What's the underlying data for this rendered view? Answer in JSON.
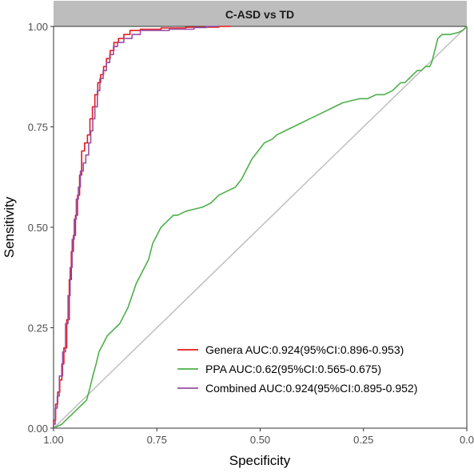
{
  "chart_data": {
    "type": "line",
    "title": "C-ASD vs TD",
    "xlabel": "Specificity",
    "ylabel": "Sensitivity",
    "x_reversed": true,
    "xlim": [
      1.0,
      0.0
    ],
    "ylim": [
      0.0,
      1.0
    ],
    "xticks": [
      1.0,
      0.75,
      0.5,
      0.25,
      0.0
    ],
    "xtick_labels": [
      "1.00",
      "0.75",
      "0.50",
      "0.25",
      "0.0"
    ],
    "yticks": [
      0.0,
      0.25,
      0.5,
      0.75,
      1.0
    ],
    "ytick_labels": [
      "0.00",
      "0.25",
      "0.50",
      "0.75",
      "1.00"
    ],
    "grid": false,
    "legend_position": "bottom-right",
    "reference_line": {
      "x": [
        1.0,
        0.0
      ],
      "y": [
        0.0,
        1.0
      ],
      "color": "#bfbfbf"
    },
    "series": [
      {
        "name": "Genera AUC:0.924(95%CI:0.896-0.953)",
        "color": "#e41a1c",
        "points": [
          [
            1.0,
            0.0
          ],
          [
            1.0,
            0.02
          ],
          [
            0.995,
            0.02
          ],
          [
            0.995,
            0.06
          ],
          [
            0.99,
            0.06
          ],
          [
            0.99,
            0.09
          ],
          [
            0.985,
            0.09
          ],
          [
            0.985,
            0.12
          ],
          [
            0.98,
            0.12
          ],
          [
            0.98,
            0.16
          ],
          [
            0.975,
            0.16
          ],
          [
            0.975,
            0.2
          ],
          [
            0.968,
            0.2
          ],
          [
            0.968,
            0.27
          ],
          [
            0.962,
            0.27
          ],
          [
            0.962,
            0.37
          ],
          [
            0.957,
            0.37
          ],
          [
            0.957,
            0.44
          ],
          [
            0.952,
            0.44
          ],
          [
            0.952,
            0.48
          ],
          [
            0.947,
            0.48
          ],
          [
            0.947,
            0.53
          ],
          [
            0.942,
            0.53
          ],
          [
            0.942,
            0.58
          ],
          [
            0.937,
            0.58
          ],
          [
            0.937,
            0.63
          ],
          [
            0.932,
            0.63
          ],
          [
            0.932,
            0.69
          ],
          [
            0.925,
            0.69
          ],
          [
            0.925,
            0.71
          ],
          [
            0.918,
            0.71
          ],
          [
            0.918,
            0.73
          ],
          [
            0.912,
            0.73
          ],
          [
            0.912,
            0.77
          ],
          [
            0.906,
            0.77
          ],
          [
            0.906,
            0.8
          ],
          [
            0.9,
            0.8
          ],
          [
            0.9,
            0.83
          ],
          [
            0.893,
            0.83
          ],
          [
            0.893,
            0.86
          ],
          [
            0.886,
            0.86
          ],
          [
            0.886,
            0.88
          ],
          [
            0.879,
            0.88
          ],
          [
            0.879,
            0.9
          ],
          [
            0.872,
            0.9
          ],
          [
            0.872,
            0.92
          ],
          [
            0.863,
            0.92
          ],
          [
            0.863,
            0.94
          ],
          [
            0.854,
            0.94
          ],
          [
            0.854,
            0.96
          ],
          [
            0.843,
            0.96
          ],
          [
            0.843,
            0.97
          ],
          [
            0.83,
            0.97
          ],
          [
            0.83,
            0.98
          ],
          [
            0.815,
            0.98
          ],
          [
            0.815,
            0.99
          ],
          [
            0.79,
            0.99
          ],
          [
            0.79,
            0.993
          ],
          [
            0.74,
            0.993
          ],
          [
            0.74,
            0.996
          ],
          [
            0.68,
            0.996
          ],
          [
            0.68,
            0.998
          ],
          [
            0.6,
            0.998
          ],
          [
            0.6,
            1.0
          ],
          [
            0.57,
            1.0
          ]
        ]
      },
      {
        "name": "PPA AUC:0.62(95%CI:0.565-0.675)",
        "color": "#4daf4a",
        "points": [
          [
            1.0,
            0.0
          ],
          [
            0.99,
            0.005
          ],
          [
            0.98,
            0.01
          ],
          [
            0.97,
            0.02
          ],
          [
            0.96,
            0.03
          ],
          [
            0.95,
            0.04
          ],
          [
            0.94,
            0.05
          ],
          [
            0.93,
            0.06
          ],
          [
            0.92,
            0.07
          ],
          [
            0.912,
            0.1
          ],
          [
            0.905,
            0.13
          ],
          [
            0.897,
            0.16
          ],
          [
            0.89,
            0.19
          ],
          [
            0.88,
            0.21
          ],
          [
            0.87,
            0.23
          ],
          [
            0.86,
            0.24
          ],
          [
            0.85,
            0.25
          ],
          [
            0.84,
            0.26
          ],
          [
            0.83,
            0.28
          ],
          [
            0.82,
            0.3
          ],
          [
            0.81,
            0.33
          ],
          [
            0.8,
            0.36
          ],
          [
            0.79,
            0.38
          ],
          [
            0.78,
            0.4
          ],
          [
            0.77,
            0.42
          ],
          [
            0.76,
            0.46
          ],
          [
            0.75,
            0.48
          ],
          [
            0.74,
            0.5
          ],
          [
            0.73,
            0.51
          ],
          [
            0.72,
            0.52
          ],
          [
            0.71,
            0.53
          ],
          [
            0.7,
            0.53
          ],
          [
            0.68,
            0.54
          ],
          [
            0.66,
            0.545
          ],
          [
            0.64,
            0.55
          ],
          [
            0.62,
            0.56
          ],
          [
            0.6,
            0.58
          ],
          [
            0.58,
            0.59
          ],
          [
            0.56,
            0.6
          ],
          [
            0.545,
            0.62
          ],
          [
            0.53,
            0.65
          ],
          [
            0.52,
            0.67
          ],
          [
            0.505,
            0.69
          ],
          [
            0.49,
            0.71
          ],
          [
            0.47,
            0.72
          ],
          [
            0.46,
            0.73
          ],
          [
            0.44,
            0.74
          ],
          [
            0.42,
            0.75
          ],
          [
            0.4,
            0.76
          ],
          [
            0.38,
            0.77
          ],
          [
            0.36,
            0.78
          ],
          [
            0.34,
            0.79
          ],
          [
            0.32,
            0.8
          ],
          [
            0.3,
            0.81
          ],
          [
            0.28,
            0.815
          ],
          [
            0.26,
            0.82
          ],
          [
            0.24,
            0.82
          ],
          [
            0.22,
            0.83
          ],
          [
            0.2,
            0.83
          ],
          [
            0.18,
            0.84
          ],
          [
            0.17,
            0.85
          ],
          [
            0.16,
            0.86
          ],
          [
            0.15,
            0.86
          ],
          [
            0.14,
            0.87
          ],
          [
            0.13,
            0.88
          ],
          [
            0.12,
            0.89
          ],
          [
            0.11,
            0.89
          ],
          [
            0.1,
            0.9
          ],
          [
            0.09,
            0.9
          ],
          [
            0.085,
            0.91
          ],
          [
            0.08,
            0.93
          ],
          [
            0.075,
            0.95
          ],
          [
            0.07,
            0.97
          ],
          [
            0.06,
            0.98
          ],
          [
            0.04,
            0.98
          ],
          [
            0.02,
            0.985
          ],
          [
            0.01,
            0.99
          ],
          [
            0.0,
            1.0
          ]
        ]
      },
      {
        "name": "Combined AUC:0.924(95%CI:0.895-0.952)",
        "color": "#984ea3",
        "points": [
          [
            1.0,
            0.0
          ],
          [
            1.0,
            0.01
          ],
          [
            0.996,
            0.01
          ],
          [
            0.996,
            0.05
          ],
          [
            0.991,
            0.05
          ],
          [
            0.991,
            0.08
          ],
          [
            0.986,
            0.08
          ],
          [
            0.986,
            0.13
          ],
          [
            0.978,
            0.13
          ],
          [
            0.978,
            0.19
          ],
          [
            0.971,
            0.19
          ],
          [
            0.971,
            0.26
          ],
          [
            0.965,
            0.26
          ],
          [
            0.965,
            0.33
          ],
          [
            0.96,
            0.33
          ],
          [
            0.96,
            0.4
          ],
          [
            0.955,
            0.4
          ],
          [
            0.955,
            0.47
          ],
          [
            0.95,
            0.47
          ],
          [
            0.95,
            0.52
          ],
          [
            0.945,
            0.52
          ],
          [
            0.945,
            0.57
          ],
          [
            0.94,
            0.57
          ],
          [
            0.94,
            0.6
          ],
          [
            0.935,
            0.6
          ],
          [
            0.935,
            0.64
          ],
          [
            0.928,
            0.64
          ],
          [
            0.928,
            0.66
          ],
          [
            0.922,
            0.66
          ],
          [
            0.922,
            0.68
          ],
          [
            0.915,
            0.68
          ],
          [
            0.915,
            0.71
          ],
          [
            0.91,
            0.71
          ],
          [
            0.91,
            0.74
          ],
          [
            0.905,
            0.74
          ],
          [
            0.905,
            0.77
          ],
          [
            0.9,
            0.77
          ],
          [
            0.9,
            0.8
          ],
          [
            0.894,
            0.8
          ],
          [
            0.894,
            0.84
          ],
          [
            0.888,
            0.84
          ],
          [
            0.888,
            0.87
          ],
          [
            0.88,
            0.87
          ],
          [
            0.88,
            0.89
          ],
          [
            0.872,
            0.89
          ],
          [
            0.872,
            0.91
          ],
          [
            0.864,
            0.91
          ],
          [
            0.864,
            0.93
          ],
          [
            0.855,
            0.93
          ],
          [
            0.855,
            0.95
          ],
          [
            0.845,
            0.95
          ],
          [
            0.845,
            0.96
          ],
          [
            0.83,
            0.96
          ],
          [
            0.83,
            0.97
          ],
          [
            0.81,
            0.97
          ],
          [
            0.81,
            0.98
          ],
          [
            0.79,
            0.98
          ],
          [
            0.79,
            0.99
          ],
          [
            0.72,
            0.99
          ],
          [
            0.72,
            0.993
          ],
          [
            0.66,
            0.993
          ],
          [
            0.66,
            0.997
          ],
          [
            0.63,
            0.997
          ],
          [
            0.63,
            1.0
          ],
          [
            0.6,
            1.0
          ]
        ]
      }
    ]
  }
}
